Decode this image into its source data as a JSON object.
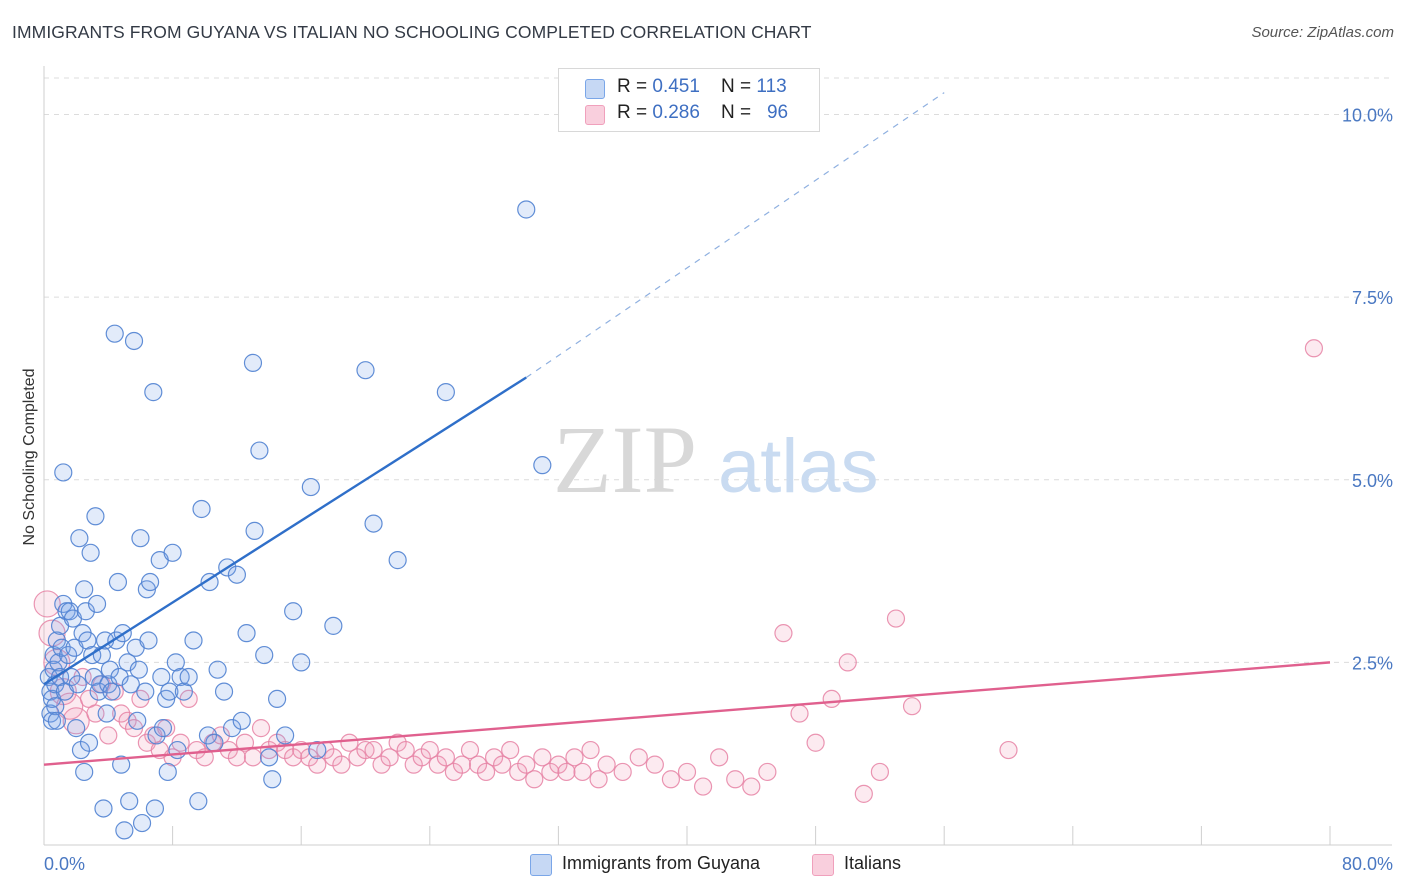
{
  "header": {
    "title": "IMMIGRANTS FROM GUYANA VS ITALIAN NO SCHOOLING COMPLETED CORRELATION CHART",
    "source": "Source: ZipAtlas.com"
  },
  "watermark": {
    "zip": "ZIP",
    "atlas": "atlas"
  },
  "legend": {
    "rows": [
      {
        "r_label": "R = ",
        "r_value": "0.451",
        "n_label": "N = ",
        "n_value": "113",
        "color": "#7aa6e8"
      },
      {
        "r_label": "R = ",
        "r_value": "0.286",
        "n_label": "N = ",
        "n_value": "96",
        "color": "#f0a0bc"
      }
    ]
  },
  "colors": {
    "guyana": "#5b8fdf",
    "italians": "#e88aab",
    "guyana_line": "#2f6fc9",
    "italians_line": "#e0608e",
    "grid": "#dcdcdc",
    "tick_text": "#4a78c2"
  },
  "chart_data": {
    "type": "scatter",
    "title": "IMMIGRANTS FROM GUYANA VS ITALIAN NO SCHOOLING COMPLETED CORRELATION CHART",
    "xlabel": "",
    "ylabel": "No Schooling Completed",
    "xlim": [
      0,
      80
    ],
    "ylim": [
      0,
      10.5
    ],
    "x_tick_labels": [
      "0.0%",
      "80.0%"
    ],
    "y_tick_labels": [
      "2.5%",
      "5.0%",
      "7.5%",
      "10.0%"
    ],
    "y_ticks": [
      2.5,
      5.0,
      7.5,
      10.0
    ],
    "grid": true,
    "legend_position": "top-center",
    "series": [
      {
        "name": "Immigrants from Guyana",
        "R": 0.451,
        "N": 113,
        "trend": {
          "x": [
            0,
            30
          ],
          "y": [
            2.2,
            6.4
          ],
          "dashed_to": [
            56,
            10.3
          ]
        },
        "points": [
          [
            0.3,
            2.3
          ],
          [
            0.4,
            1.8
          ],
          [
            0.4,
            2.1
          ],
          [
            0.5,
            2.0
          ],
          [
            0.5,
            1.7
          ],
          [
            0.6,
            2.6
          ],
          [
            0.6,
            2.4
          ],
          [
            0.7,
            1.9
          ],
          [
            0.7,
            2.2
          ],
          [
            0.8,
            2.8
          ],
          [
            0.8,
            1.7
          ],
          [
            0.9,
            2.5
          ],
          [
            1.0,
            3.0
          ],
          [
            1.0,
            2.3
          ],
          [
            1.1,
            2.7
          ],
          [
            1.2,
            3.3
          ],
          [
            1.2,
            5.1
          ],
          [
            1.3,
            2.1
          ],
          [
            1.4,
            3.2
          ],
          [
            1.5,
            2.6
          ],
          [
            1.6,
            3.2
          ],
          [
            1.7,
            2.3
          ],
          [
            1.8,
            3.1
          ],
          [
            1.9,
            2.7
          ],
          [
            2.0,
            1.6
          ],
          [
            2.1,
            2.2
          ],
          [
            2.2,
            4.2
          ],
          [
            2.3,
            1.3
          ],
          [
            2.4,
            2.9
          ],
          [
            2.5,
            3.5
          ],
          [
            2.5,
            1.0
          ],
          [
            2.6,
            3.2
          ],
          [
            2.7,
            2.8
          ],
          [
            2.8,
            1.4
          ],
          [
            2.9,
            4.0
          ],
          [
            3.0,
            2.6
          ],
          [
            3.1,
            2.3
          ],
          [
            3.2,
            4.5
          ],
          [
            3.3,
            3.3
          ],
          [
            3.4,
            2.1
          ],
          [
            3.5,
            2.2
          ],
          [
            3.6,
            2.6
          ],
          [
            3.7,
            0.5
          ],
          [
            3.8,
            2.8
          ],
          [
            3.9,
            1.8
          ],
          [
            4.0,
            2.2
          ],
          [
            4.1,
            2.4
          ],
          [
            4.2,
            2.1
          ],
          [
            4.4,
            7.0
          ],
          [
            4.5,
            2.8
          ],
          [
            4.6,
            3.6
          ],
          [
            4.7,
            2.3
          ],
          [
            4.8,
            1.1
          ],
          [
            4.9,
            2.9
          ],
          [
            5.0,
            0.2
          ],
          [
            5.2,
            2.5
          ],
          [
            5.3,
            0.6
          ],
          [
            5.4,
            2.2
          ],
          [
            5.6,
            6.9
          ],
          [
            5.7,
            2.7
          ],
          [
            5.8,
            1.7
          ],
          [
            5.9,
            2.4
          ],
          [
            6.0,
            4.2
          ],
          [
            6.1,
            0.3
          ],
          [
            6.3,
            2.1
          ],
          [
            6.4,
            3.5
          ],
          [
            6.5,
            2.8
          ],
          [
            6.6,
            3.6
          ],
          [
            6.8,
            6.2
          ],
          [
            6.9,
            0.5
          ],
          [
            7.0,
            1.5
          ],
          [
            7.2,
            3.9
          ],
          [
            7.3,
            2.3
          ],
          [
            7.4,
            1.6
          ],
          [
            7.6,
            2.0
          ],
          [
            7.7,
            1.0
          ],
          [
            7.8,
            2.1
          ],
          [
            8.0,
            4.0
          ],
          [
            8.2,
            2.5
          ],
          [
            8.3,
            1.3
          ],
          [
            8.5,
            2.3
          ],
          [
            8.7,
            2.1
          ],
          [
            9.0,
            2.3
          ],
          [
            9.3,
            2.8
          ],
          [
            9.6,
            0.6
          ],
          [
            9.8,
            4.6
          ],
          [
            10.2,
            1.5
          ],
          [
            10.3,
            3.6
          ],
          [
            10.6,
            1.4
          ],
          [
            10.8,
            2.4
          ],
          [
            11.2,
            2.1
          ],
          [
            11.4,
            3.8
          ],
          [
            11.7,
            1.6
          ],
          [
            12.0,
            3.7
          ],
          [
            12.3,
            1.7
          ],
          [
            12.6,
            2.9
          ],
          [
            13.0,
            6.6
          ],
          [
            13.1,
            4.3
          ],
          [
            13.4,
            5.4
          ],
          [
            13.7,
            2.6
          ],
          [
            14.0,
            1.2
          ],
          [
            14.5,
            2.0
          ],
          [
            15.0,
            1.5
          ],
          [
            14.2,
            0.9
          ],
          [
            15.5,
            3.2
          ],
          [
            16.0,
            2.5
          ],
          [
            16.6,
            4.9
          ],
          [
            17.0,
            1.3
          ],
          [
            18.0,
            3.0
          ],
          [
            20.0,
            6.5
          ],
          [
            20.5,
            4.4
          ],
          [
            30.0,
            8.7
          ],
          [
            25.0,
            6.2
          ],
          [
            22.0,
            3.9
          ],
          [
            31.0,
            5.2
          ]
        ]
      },
      {
        "name": "Italians",
        "R": 0.286,
        "N": 96,
        "trend": {
          "x": [
            0,
            80
          ],
          "y": [
            1.1,
            2.5
          ]
        },
        "points": [
          [
            0.2,
            3.3
          ],
          [
            0.5,
            2.9
          ],
          [
            0.8,
            2.5
          ],
          [
            1.2,
            2.1
          ],
          [
            1.6,
            1.9
          ],
          [
            2.0,
            1.7
          ],
          [
            2.4,
            2.3
          ],
          [
            2.8,
            2.0
          ],
          [
            3.2,
            1.8
          ],
          [
            3.6,
            2.2
          ],
          [
            4.0,
            1.5
          ],
          [
            4.4,
            2.1
          ],
          [
            4.8,
            1.8
          ],
          [
            5.2,
            1.7
          ],
          [
            5.6,
            1.6
          ],
          [
            6.0,
            2.0
          ],
          [
            6.4,
            1.4
          ],
          [
            6.8,
            1.5
          ],
          [
            7.2,
            1.3
          ],
          [
            7.6,
            1.6
          ],
          [
            8.0,
            1.2
          ],
          [
            8.5,
            1.4
          ],
          [
            9.0,
            2.0
          ],
          [
            9.5,
            1.3
          ],
          [
            10.0,
            1.2
          ],
          [
            10.5,
            1.4
          ],
          [
            11.0,
            1.5
          ],
          [
            11.5,
            1.3
          ],
          [
            12.0,
            1.2
          ],
          [
            12.5,
            1.4
          ],
          [
            13.0,
            1.2
          ],
          [
            13.5,
            1.6
          ],
          [
            14.0,
            1.3
          ],
          [
            14.5,
            1.4
          ],
          [
            15.0,
            1.3
          ],
          [
            15.5,
            1.2
          ],
          [
            16.0,
            1.3
          ],
          [
            16.5,
            1.2
          ],
          [
            17.0,
            1.1
          ],
          [
            17.5,
            1.3
          ],
          [
            18.0,
            1.2
          ],
          [
            18.5,
            1.1
          ],
          [
            19.0,
            1.4
          ],
          [
            19.5,
            1.2
          ],
          [
            20.0,
            1.3
          ],
          [
            20.5,
            1.3
          ],
          [
            21.0,
            1.1
          ],
          [
            21.5,
            1.2
          ],
          [
            22.0,
            1.4
          ],
          [
            22.5,
            1.3
          ],
          [
            23.0,
            1.1
          ],
          [
            23.5,
            1.2
          ],
          [
            24.0,
            1.3
          ],
          [
            24.5,
            1.1
          ],
          [
            25.0,
            1.2
          ],
          [
            25.5,
            1.0
          ],
          [
            26.0,
            1.1
          ],
          [
            26.5,
            1.3
          ],
          [
            27.0,
            1.1
          ],
          [
            27.5,
            1.0
          ],
          [
            28.0,
            1.2
          ],
          [
            28.5,
            1.1
          ],
          [
            29.0,
            1.3
          ],
          [
            29.5,
            1.0
          ],
          [
            30.0,
            1.1
          ],
          [
            30.5,
            0.9
          ],
          [
            31.0,
            1.2
          ],
          [
            31.5,
            1.0
          ],
          [
            32.0,
            1.1
          ],
          [
            32.5,
            1.0
          ],
          [
            33.0,
            1.2
          ],
          [
            33.5,
            1.0
          ],
          [
            34.0,
            1.3
          ],
          [
            34.5,
            0.9
          ],
          [
            35.0,
            1.1
          ],
          [
            36.0,
            1.0
          ],
          [
            37.0,
            1.2
          ],
          [
            38.0,
            1.1
          ],
          [
            39.0,
            0.9
          ],
          [
            40.0,
            1.0
          ],
          [
            41.0,
            0.8
          ],
          [
            42.0,
            1.2
          ],
          [
            43.0,
            0.9
          ],
          [
            44.0,
            0.8
          ],
          [
            45.0,
            1.0
          ],
          [
            46.0,
            2.9
          ],
          [
            47.0,
            1.8
          ],
          [
            48.0,
            1.4
          ],
          [
            49.0,
            2.0
          ],
          [
            50.0,
            2.5
          ],
          [
            51.0,
            0.7
          ],
          [
            52.0,
            1.0
          ],
          [
            53.0,
            3.1
          ],
          [
            54.0,
            1.9
          ],
          [
            60.0,
            1.3
          ],
          [
            79.0,
            6.8
          ]
        ]
      }
    ]
  },
  "bottom_legend": {
    "items": [
      {
        "label": "Immigrants from Guyana",
        "color": "#7aa6e8"
      },
      {
        "label": "Italians",
        "color": "#f0a0bc"
      }
    ]
  }
}
